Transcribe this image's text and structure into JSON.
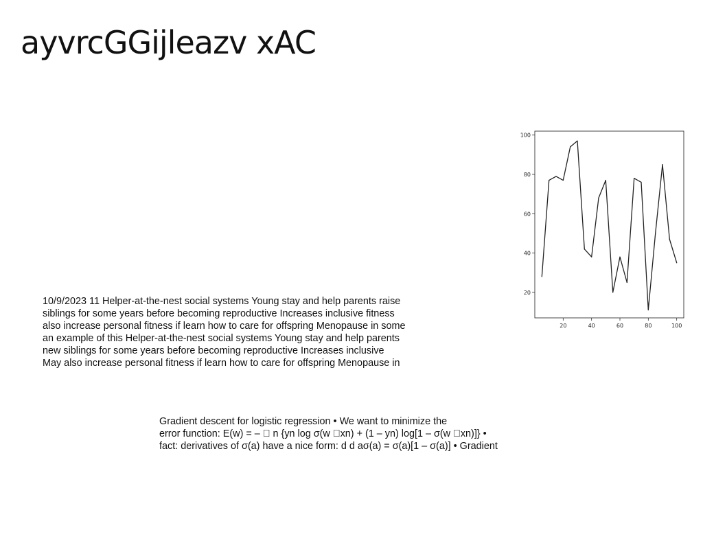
{
  "slide": {
    "title": "ayvrcGGijleazv xAC",
    "paragraph_lines": [
      "10/9/2023 11 Helper-at-the-nest social systems Young stay and help parents raise",
      "siblings for some years before becoming reproductive Increases inclusive fitness",
      "also increase personal fitness if learn how to care for offspring Menopause in some",
      "an example of this Helper-at-the-nest social systems Young stay and help parents",
      "new siblings for some years before becoming reproductive Increases inclusive",
      "May also increase personal fitness if learn how to care for offspring Menopause in"
    ],
    "formula_lines": [
      "Gradient descent for logistic regression • We want to minimize the",
      "error function: E(w) = – ￿ n {yn log σ(w ￿xn) + (1 – yn) log[1 – σ(w ￿xn)]} •",
      "fact: derivatives of σ(a) have a nice form: d d aσ(a) = σ(a)[1 – σ(a)] • Gradient"
    ]
  },
  "chart_data": {
    "type": "line",
    "title": "",
    "xlabel": "",
    "ylabel": "",
    "x": [
      5,
      10,
      15,
      20,
      25,
      30,
      35,
      40,
      45,
      50,
      55,
      60,
      65,
      70,
      75,
      80,
      85,
      90,
      95,
      100
    ],
    "y": [
      28,
      77,
      79,
      77,
      94,
      97,
      42,
      38,
      68,
      77,
      20,
      38,
      25,
      78,
      76,
      11,
      50,
      85,
      47,
      35
    ],
    "xlim": [
      0,
      105
    ],
    "ylim": [
      7,
      102
    ],
    "xticks": [
      20,
      40,
      60,
      80,
      100
    ],
    "yticks": [
      20,
      40,
      60,
      80,
      100
    ],
    "line_color": "#222222",
    "grid": false,
    "legend": "none"
  }
}
